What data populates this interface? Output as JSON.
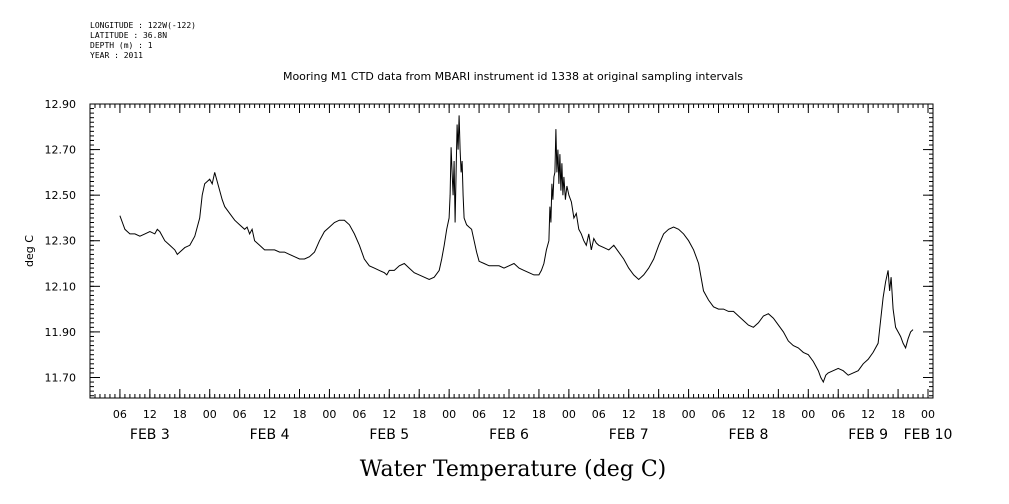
{
  "metadata": [
    {
      "key": "longitude",
      "text": "LONGITUDE : 122W(-122)"
    },
    {
      "key": "latitude",
      "text": "LATITUDE : 36.8N"
    },
    {
      "key": "depth",
      "text": "DEPTH (m) : 1"
    },
    {
      "key": "year",
      "text": "YEAR : 2011"
    }
  ],
  "chart_data": {
    "type": "line",
    "title": "Mooring M1 CTD data from MBARI instrument id 1338 at original sampling intervals",
    "xlabel": "Water Temperature (deg C)",
    "ylabel": "deg C",
    "ylim": [
      11.61,
      12.9
    ],
    "xlim": [
      0,
      169
    ],
    "x_units": "hours since FEB 3 2011 00:00",
    "yticks": [
      "12.90",
      "12.70",
      "12.50",
      "12.30",
      "12.10",
      "11.90",
      "11.70"
    ],
    "ytick_values": [
      12.9,
      12.7,
      12.5,
      12.3,
      12.1,
      11.9,
      11.7
    ],
    "xtick_hours": [
      6,
      12,
      18,
      24,
      30,
      36,
      42,
      48,
      54,
      60,
      66,
      72,
      78,
      84,
      90,
      96,
      102,
      108,
      114,
      120,
      126,
      132,
      138,
      144,
      150,
      156,
      162,
      168
    ],
    "xtick_labels": [
      "06",
      "12",
      "18",
      "00",
      "06",
      "12",
      "18",
      "00",
      "06",
      "12",
      "18",
      "00",
      "06",
      "12",
      "18",
      "00",
      "06",
      "12",
      "18",
      "00",
      "06",
      "12",
      "18",
      "00",
      "06",
      "12",
      "18",
      "00"
    ],
    "day_labels": [
      {
        "text": "FEB  3",
        "hour": 12
      },
      {
        "text": "FEB  4",
        "hour": 36
      },
      {
        "text": "FEB  5",
        "hour": 60
      },
      {
        "text": "FEB  6",
        "hour": 84
      },
      {
        "text": "FEB  7",
        "hour": 108
      },
      {
        "text": "FEB  8",
        "hour": 132
      },
      {
        "text": "FEB  9",
        "hour": 156
      },
      {
        "text": "FEB 10",
        "hour": 168
      }
    ],
    "grid": false,
    "series": [
      {
        "color": "#000000",
        "points": [
          [
            6.0,
            12.41
          ],
          [
            6.5,
            12.38
          ],
          [
            7.0,
            12.35
          ],
          [
            7.5,
            12.34
          ],
          [
            8.0,
            12.33
          ],
          [
            9.0,
            12.33
          ],
          [
            10.0,
            12.32
          ],
          [
            11.0,
            12.33
          ],
          [
            12.0,
            12.34
          ],
          [
            13.0,
            12.33
          ],
          [
            13.5,
            12.35
          ],
          [
            14.0,
            12.34
          ],
          [
            15.0,
            12.3
          ],
          [
            16.0,
            12.28
          ],
          [
            17.0,
            12.26
          ],
          [
            17.5,
            12.24
          ],
          [
            18.0,
            12.25
          ],
          [
            19.0,
            12.27
          ],
          [
            20.0,
            12.28
          ],
          [
            21.0,
            12.32
          ],
          [
            22.0,
            12.4
          ],
          [
            22.5,
            12.5
          ],
          [
            23.0,
            12.55
          ],
          [
            23.5,
            12.56
          ],
          [
            24.0,
            12.57
          ],
          [
            24.5,
            12.55
          ],
          [
            25.0,
            12.6
          ],
          [
            25.5,
            12.56
          ],
          [
            26.0,
            12.52
          ],
          [
            26.5,
            12.48
          ],
          [
            27.0,
            12.45
          ],
          [
            28.0,
            12.42
          ],
          [
            29.0,
            12.39
          ],
          [
            30.0,
            12.37
          ],
          [
            31.0,
            12.35
          ],
          [
            31.5,
            12.36
          ],
          [
            32.0,
            12.33
          ],
          [
            32.5,
            12.35
          ],
          [
            33.0,
            12.3
          ],
          [
            34.0,
            12.28
          ],
          [
            35.0,
            12.26
          ],
          [
            36.0,
            12.26
          ],
          [
            37.0,
            12.26
          ],
          [
            38.0,
            12.25
          ],
          [
            39.0,
            12.25
          ],
          [
            40.0,
            12.24
          ],
          [
            41.0,
            12.23
          ],
          [
            42.0,
            12.22
          ],
          [
            43.0,
            12.22
          ],
          [
            44.0,
            12.23
          ],
          [
            45.0,
            12.25
          ],
          [
            46.0,
            12.3
          ],
          [
            47.0,
            12.34
          ],
          [
            48.0,
            12.36
          ],
          [
            49.0,
            12.38
          ],
          [
            50.0,
            12.39
          ],
          [
            51.0,
            12.39
          ],
          [
            52.0,
            12.37
          ],
          [
            53.0,
            12.33
          ],
          [
            54.0,
            12.28
          ],
          [
            55.0,
            12.22
          ],
          [
            56.0,
            12.19
          ],
          [
            57.0,
            12.18
          ],
          [
            58.0,
            12.17
          ],
          [
            59.0,
            12.16
          ],
          [
            59.5,
            12.15
          ],
          [
            60.0,
            12.17
          ],
          [
            61.0,
            12.17
          ],
          [
            62.0,
            12.19
          ],
          [
            63.0,
            12.2
          ],
          [
            64.0,
            12.18
          ],
          [
            65.0,
            12.16
          ],
          [
            66.0,
            12.15
          ],
          [
            67.0,
            12.14
          ],
          [
            68.0,
            12.13
          ],
          [
            69.0,
            12.14
          ],
          [
            70.0,
            12.17
          ],
          [
            70.5,
            12.22
          ],
          [
            71.0,
            12.28
          ],
          [
            71.5,
            12.35
          ],
          [
            72.0,
            12.4
          ],
          [
            72.2,
            12.5
          ],
          [
            72.4,
            12.71
          ],
          [
            72.6,
            12.6
          ],
          [
            72.8,
            12.5
          ],
          [
            73.0,
            12.65
          ],
          [
            73.2,
            12.38
          ],
          [
            73.4,
            12.6
          ],
          [
            73.6,
            12.81
          ],
          [
            73.8,
            12.7
          ],
          [
            74.0,
            12.85
          ],
          [
            74.2,
            12.7
          ],
          [
            74.4,
            12.6
          ],
          [
            74.6,
            12.65
          ],
          [
            74.8,
            12.5
          ],
          [
            75.0,
            12.4
          ],
          [
            75.5,
            12.37
          ],
          [
            76.0,
            12.36
          ],
          [
            76.5,
            12.35
          ],
          [
            77.0,
            12.3
          ],
          [
            77.5,
            12.25
          ],
          [
            78.0,
            12.21
          ],
          [
            79.0,
            12.2
          ],
          [
            80.0,
            12.19
          ],
          [
            81.0,
            12.19
          ],
          [
            82.0,
            12.19
          ],
          [
            83.0,
            12.18
          ],
          [
            84.0,
            12.19
          ],
          [
            85.0,
            12.2
          ],
          [
            86.0,
            12.18
          ],
          [
            87.0,
            12.17
          ],
          [
            88.0,
            12.16
          ],
          [
            89.0,
            12.15
          ],
          [
            90.0,
            12.15
          ],
          [
            90.5,
            12.17
          ],
          [
            91.0,
            12.2
          ],
          [
            91.5,
            12.26
          ],
          [
            92.0,
            12.3
          ],
          [
            92.2,
            12.45
          ],
          [
            92.4,
            12.38
          ],
          [
            92.6,
            12.55
          ],
          [
            92.8,
            12.48
          ],
          [
            93.0,
            12.58
          ],
          [
            93.2,
            12.6
          ],
          [
            93.4,
            12.79
          ],
          [
            93.6,
            12.6
          ],
          [
            93.8,
            12.7
          ],
          [
            94.0,
            12.55
          ],
          [
            94.2,
            12.68
          ],
          [
            94.4,
            12.52
          ],
          [
            94.6,
            12.64
          ],
          [
            94.8,
            12.5
          ],
          [
            95.0,
            12.58
          ],
          [
            95.3,
            12.48
          ],
          [
            95.6,
            12.54
          ],
          [
            96.0,
            12.5
          ],
          [
            96.5,
            12.47
          ],
          [
            97.0,
            12.4
          ],
          [
            97.5,
            12.42
          ],
          [
            98.0,
            12.35
          ],
          [
            98.5,
            12.33
          ],
          [
            99.0,
            12.3
          ],
          [
            99.5,
            12.28
          ],
          [
            100.0,
            12.33
          ],
          [
            100.5,
            12.26
          ],
          [
            101.0,
            12.31
          ],
          [
            101.5,
            12.29
          ],
          [
            102.0,
            12.28
          ],
          [
            103.0,
            12.27
          ],
          [
            104.0,
            12.26
          ],
          [
            105.0,
            12.28
          ],
          [
            106.0,
            12.25
          ],
          [
            107.0,
            12.22
          ],
          [
            108.0,
            12.18
          ],
          [
            109.0,
            12.15
          ],
          [
            110.0,
            12.13
          ],
          [
            111.0,
            12.15
          ],
          [
            112.0,
            12.18
          ],
          [
            113.0,
            12.22
          ],
          [
            114.0,
            12.28
          ],
          [
            115.0,
            12.33
          ],
          [
            116.0,
            12.35
          ],
          [
            117.0,
            12.36
          ],
          [
            118.0,
            12.35
          ],
          [
            119.0,
            12.33
          ],
          [
            120.0,
            12.3
          ],
          [
            121.0,
            12.26
          ],
          [
            122.0,
            12.2
          ],
          [
            123.0,
            12.08
          ],
          [
            124.0,
            12.04
          ],
          [
            125.0,
            12.01
          ],
          [
            126.0,
            12.0
          ],
          [
            127.0,
            12.0
          ],
          [
            128.0,
            11.99
          ],
          [
            129.0,
            11.99
          ],
          [
            130.0,
            11.97
          ],
          [
            131.0,
            11.95
          ],
          [
            132.0,
            11.93
          ],
          [
            133.0,
            11.92
          ],
          [
            134.0,
            11.94
          ],
          [
            135.0,
            11.97
          ],
          [
            136.0,
            11.98
          ],
          [
            137.0,
            11.96
          ],
          [
            138.0,
            11.93
          ],
          [
            139.0,
            11.9
          ],
          [
            140.0,
            11.86
          ],
          [
            141.0,
            11.84
          ],
          [
            142.0,
            11.83
          ],
          [
            143.0,
            11.81
          ],
          [
            144.0,
            11.8
          ],
          [
            145.0,
            11.77
          ],
          [
            146.0,
            11.73
          ],
          [
            146.5,
            11.7
          ],
          [
            147.0,
            11.68
          ],
          [
            147.5,
            11.71
          ],
          [
            148.0,
            11.72
          ],
          [
            149.0,
            11.73
          ],
          [
            150.0,
            11.74
          ],
          [
            151.0,
            11.73
          ],
          [
            152.0,
            11.71
          ],
          [
            153.0,
            11.72
          ],
          [
            154.0,
            11.73
          ],
          [
            155.0,
            11.76
          ],
          [
            156.0,
            11.78
          ],
          [
            157.0,
            11.81
          ],
          [
            158.0,
            11.85
          ],
          [
            158.5,
            11.95
          ],
          [
            159.0,
            12.05
          ],
          [
            159.5,
            12.12
          ],
          [
            160.0,
            12.17
          ],
          [
            160.3,
            12.08
          ],
          [
            160.6,
            12.14
          ],
          [
            161.0,
            12.0
          ],
          [
            161.5,
            11.92
          ],
          [
            162.0,
            11.9
          ],
          [
            162.5,
            11.88
          ],
          [
            163.0,
            11.85
          ],
          [
            163.5,
            11.83
          ],
          [
            164.0,
            11.87
          ],
          [
            164.5,
            11.9
          ],
          [
            165.0,
            11.91
          ]
        ]
      }
    ]
  }
}
